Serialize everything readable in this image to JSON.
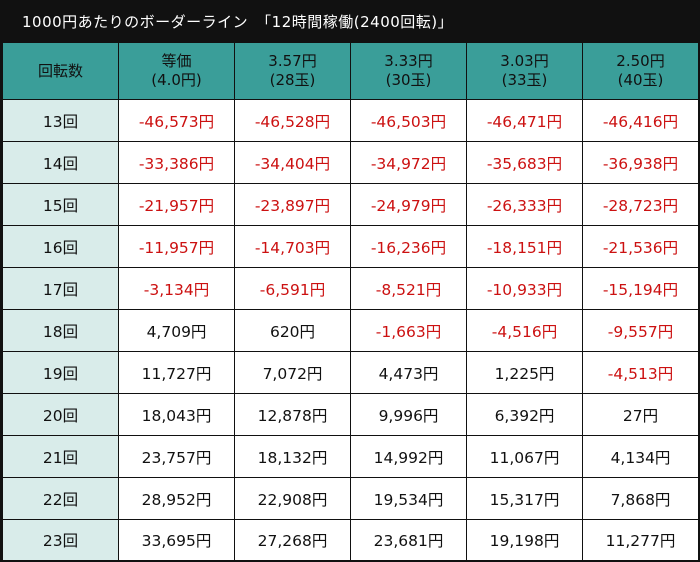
{
  "title": "1000円あたりのボーダーライン　「12時間稼働(2400回転)」",
  "header": {
    "row_label": "回転数",
    "columns": [
      {
        "line1": "等価",
        "line2": "(4.0円)"
      },
      {
        "line1": "3.57円",
        "line2": "(28玉)"
      },
      {
        "line1": "3.33円",
        "line2": "(30玉)"
      },
      {
        "line1": "3.03円",
        "line2": "(33玉)"
      },
      {
        "line1": "2.50円",
        "line2": "(40玉)"
      }
    ]
  },
  "rows": [
    {
      "label": "13回",
      "cells": [
        {
          "text": "-46,573円",
          "negative": true
        },
        {
          "text": "-46,528円",
          "negative": true
        },
        {
          "text": "-46,503円",
          "negative": true
        },
        {
          "text": "-46,471円",
          "negative": true
        },
        {
          "text": "-46,416円",
          "negative": true
        }
      ]
    },
    {
      "label": "14回",
      "cells": [
        {
          "text": "-33,386円",
          "negative": true
        },
        {
          "text": "-34,404円",
          "negative": true
        },
        {
          "text": "-34,972円",
          "negative": true
        },
        {
          "text": "-35,683円",
          "negative": true
        },
        {
          "text": "-36,938円",
          "negative": true
        }
      ]
    },
    {
      "label": "15回",
      "cells": [
        {
          "text": "-21,957円",
          "negative": true
        },
        {
          "text": "-23,897円",
          "negative": true
        },
        {
          "text": "-24,979円",
          "negative": true
        },
        {
          "text": "-26,333円",
          "negative": true
        },
        {
          "text": "-28,723円",
          "negative": true
        }
      ]
    },
    {
      "label": "16回",
      "cells": [
        {
          "text": "-11,957円",
          "negative": true
        },
        {
          "text": "-14,703円",
          "negative": true
        },
        {
          "text": "-16,236円",
          "negative": true
        },
        {
          "text": "-18,151円",
          "negative": true
        },
        {
          "text": "-21,536円",
          "negative": true
        }
      ]
    },
    {
      "label": "17回",
      "cells": [
        {
          "text": "-3,134円",
          "negative": true
        },
        {
          "text": "-6,591円",
          "negative": true
        },
        {
          "text": "-8,521円",
          "negative": true
        },
        {
          "text": "-10,933円",
          "negative": true
        },
        {
          "text": "-15,194円",
          "negative": true
        }
      ]
    },
    {
      "label": "18回",
      "cells": [
        {
          "text": "4,709円",
          "negative": false
        },
        {
          "text": "620円",
          "negative": false
        },
        {
          "text": "-1,663円",
          "negative": true
        },
        {
          "text": "-4,516円",
          "negative": true
        },
        {
          "text": "-9,557円",
          "negative": true
        }
      ]
    },
    {
      "label": "19回",
      "cells": [
        {
          "text": "11,727円",
          "negative": false
        },
        {
          "text": "7,072円",
          "negative": false
        },
        {
          "text": "4,473円",
          "negative": false
        },
        {
          "text": "1,225円",
          "negative": false
        },
        {
          "text": "-4,513円",
          "negative": true
        }
      ]
    },
    {
      "label": "20回",
      "cells": [
        {
          "text": "18,043円",
          "negative": false
        },
        {
          "text": "12,878円",
          "negative": false
        },
        {
          "text": "9,996円",
          "negative": false
        },
        {
          "text": "6,392円",
          "negative": false
        },
        {
          "text": "27円",
          "negative": false
        }
      ]
    },
    {
      "label": "21回",
      "cells": [
        {
          "text": "23,757円",
          "negative": false
        },
        {
          "text": "18,132円",
          "negative": false
        },
        {
          "text": "14,992円",
          "negative": false
        },
        {
          "text": "11,067円",
          "negative": false
        },
        {
          "text": "4,134円",
          "negative": false
        }
      ]
    },
    {
      "label": "22回",
      "cells": [
        {
          "text": "28,952円",
          "negative": false
        },
        {
          "text": "22,908円",
          "negative": false
        },
        {
          "text": "19,534円",
          "negative": false
        },
        {
          "text": "15,317円",
          "negative": false
        },
        {
          "text": "7,868円",
          "negative": false
        }
      ]
    },
    {
      "label": "23回",
      "cells": [
        {
          "text": "33,695円",
          "negative": false
        },
        {
          "text": "27,268円",
          "negative": false
        },
        {
          "text": "23,681円",
          "negative": false
        },
        {
          "text": "19,198円",
          "negative": false
        },
        {
          "text": "11,277円",
          "negative": false
        }
      ]
    }
  ],
  "colors": {
    "header_bg": "#3a9e99",
    "row_label_bg": "#d9ecea",
    "negative_text": "#cc1111",
    "frame": "#111111"
  }
}
